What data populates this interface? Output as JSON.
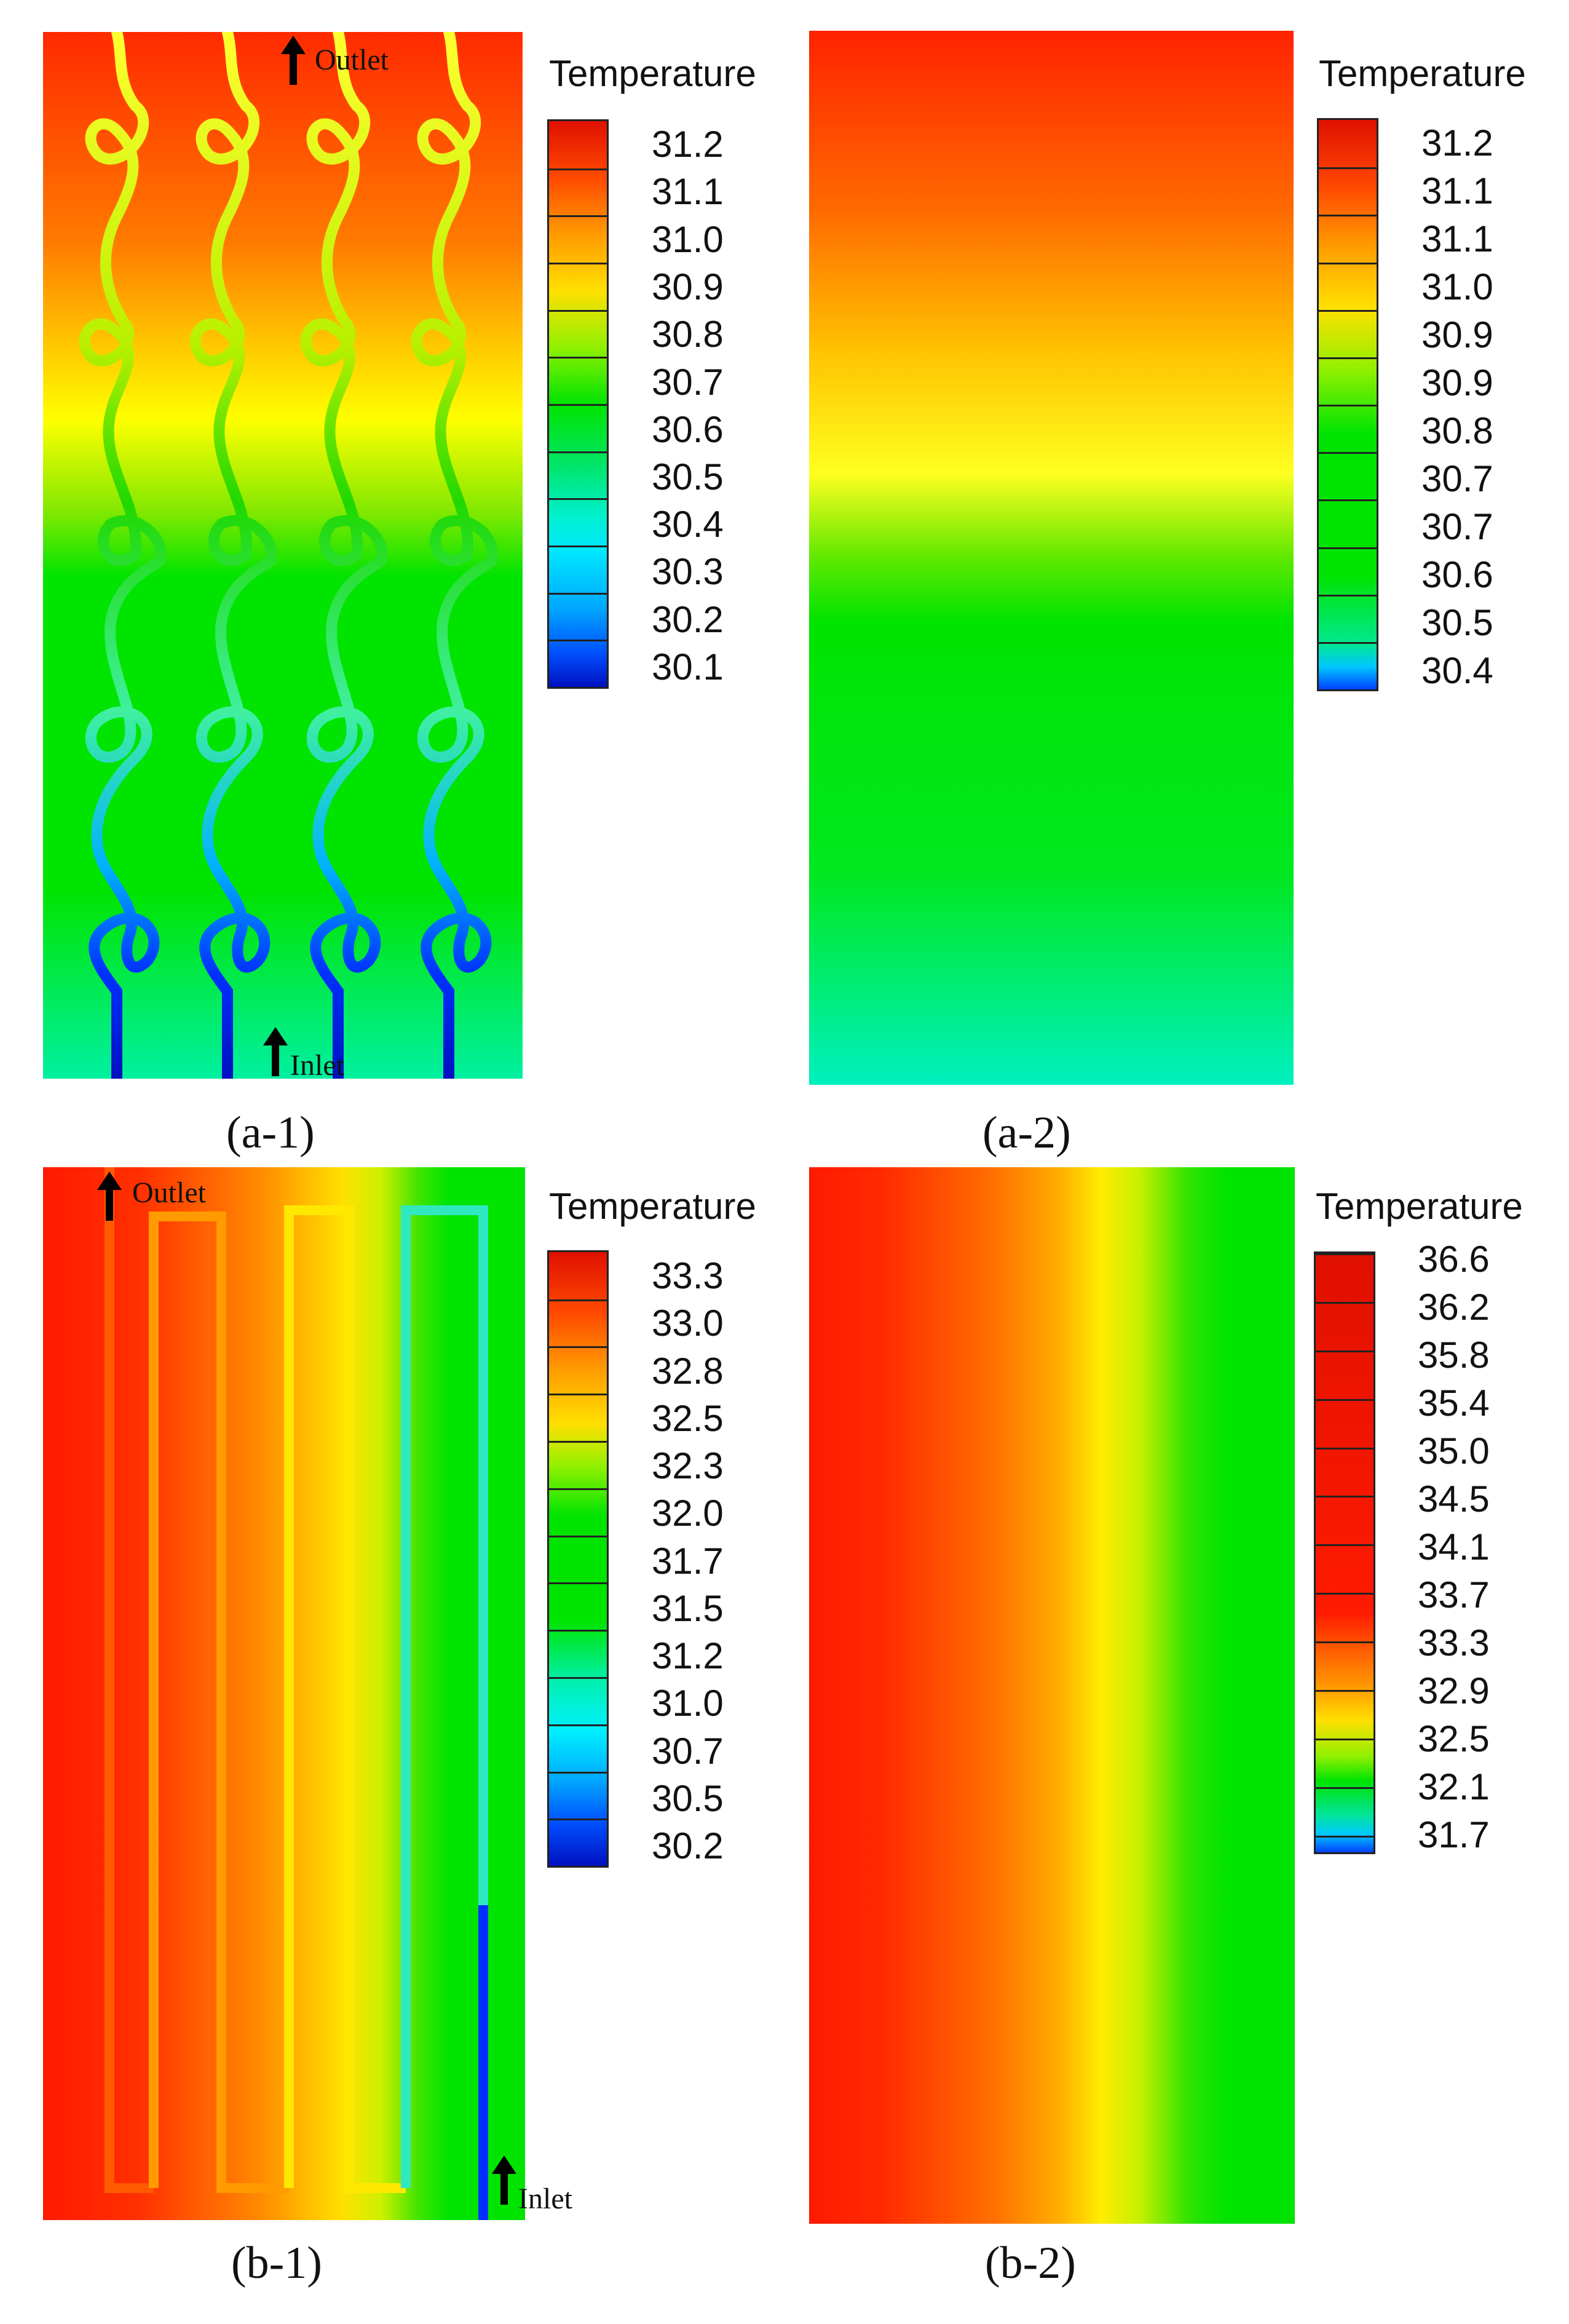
{
  "panels": {
    "a1": {
      "caption": "(a-1)",
      "outlet": "Outlet",
      "inlet": "Inlet",
      "legend": {
        "title": "Temperature",
        "ticks": [
          "31.2",
          "31.1",
          "31.0",
          "30.9",
          "30.8",
          "30.7",
          "30.6",
          "30.5",
          "30.4",
          "30.3",
          "30.2",
          "30.1"
        ]
      }
    },
    "a2": {
      "caption": "(a-2)",
      "legend": {
        "title": "Temperature",
        "ticks": [
          "31.2",
          "31.1",
          "31.1",
          "31.0",
          "30.9",
          "30.9",
          "30.8",
          "30.7",
          "30.7",
          "30.6",
          "30.5",
          "30.4"
        ]
      }
    },
    "b1": {
      "caption": "(b-1)",
      "outlet": "Outlet",
      "inlet": "Inlet",
      "legend": {
        "title": "Temperature",
        "ticks": [
          "33.3",
          "33.0",
          "32.8",
          "32.5",
          "32.3",
          "32.0",
          "31.7",
          "31.5",
          "31.2",
          "31.0",
          "30.7",
          "30.5",
          "30.2"
        ]
      }
    },
    "b2": {
      "caption": "(b-2)",
      "legend": {
        "title": "Temperature",
        "ticks": [
          "36.6",
          "36.2",
          "35.8",
          "35.4",
          "35.0",
          "34.5",
          "34.1",
          "33.7",
          "33.3",
          "32.9",
          "32.5",
          "32.1",
          "31.7"
        ]
      }
    }
  },
  "colors": {
    "red": "#ff1a00",
    "orange": "#ff8a00",
    "yellow": "#ffff00",
    "green": "#00e400",
    "cyan": "#00ffe6",
    "blue": "#0026ff",
    "darkblue": "#0000b0"
  }
}
